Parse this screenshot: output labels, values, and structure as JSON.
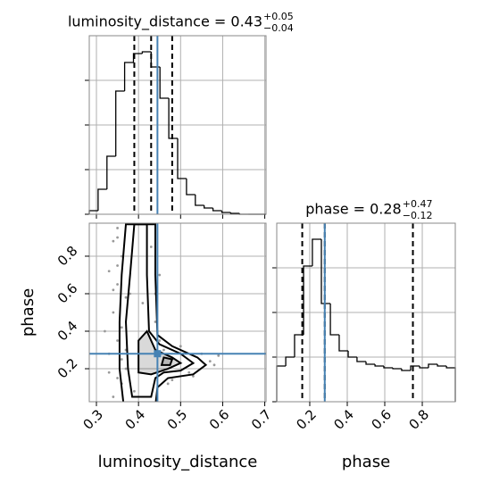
{
  "chart_data": [
    {
      "type": "histogram",
      "title": "luminosity_distance = 0.43",
      "title_sup": "+0.05",
      "title_sub": "−0.04",
      "bins": [
        0.283,
        0.304,
        0.325,
        0.346,
        0.367,
        0.388,
        0.409,
        0.43,
        0.451,
        0.472,
        0.493,
        0.514,
        0.535,
        0.556,
        0.577,
        0.598,
        0.619,
        0.64,
        0.661,
        0.682,
        0.703
      ],
      "values": [
        4,
        28,
        65,
        138,
        170,
        180,
        182,
        165,
        130,
        85,
        40,
        22,
        10,
        7,
        4,
        2,
        1,
        0,
        0,
        0
      ],
      "color": "#000000",
      "quantiles": [
        0.39,
        0.43,
        0.48
      ],
      "truth": 0.445,
      "truth_color": "#4682b4",
      "xlim": [
        0.283,
        0.703
      ],
      "ylim": [
        0,
        200
      ],
      "yticks": [
        0,
        50,
        100,
        150
      ],
      "grid": true
    },
    {
      "type": "histogram",
      "title": "phase = 0.28",
      "title_sup": "+0.47",
      "title_sub": "−0.12",
      "x_label": "phase",
      "bins": [
        0.024,
        0.072,
        0.119,
        0.167,
        0.214,
        0.262,
        0.31,
        0.357,
        0.405,
        0.452,
        0.5,
        0.548,
        0.595,
        0.643,
        0.69,
        0.738,
        0.786,
        0.833,
        0.881,
        0.929,
        0.976
      ],
      "values": [
        40,
        50,
        75,
        152,
        182,
        110,
        75,
        57,
        50,
        45,
        42,
        40,
        38,
        37,
        35,
        40,
        38,
        42,
        40,
        38
      ],
      "color": "#000000",
      "quantiles": [
        0.16,
        0.28,
        0.75
      ],
      "truth": 0.28,
      "truth_color": "#4682b4",
      "xlim": [
        0.024,
        0.976
      ],
      "xticks": [
        0.2,
        0.4,
        0.6,
        0.8
      ],
      "ylim": [
        0,
        200
      ],
      "yticks": [
        0,
        50,
        100,
        150
      ],
      "grid": true
    },
    {
      "type": "scatter",
      "x_label": "luminosity_distance",
      "y_label": "phase",
      "x": [
        0.35,
        0.34,
        0.36,
        0.33,
        0.35,
        0.37,
        0.34,
        0.36,
        0.35,
        0.33,
        0.37,
        0.36,
        0.34,
        0.35,
        0.38,
        0.45,
        0.46,
        0.5,
        0.52,
        0.55,
        0.57,
        0.48,
        0.53,
        0.58,
        0.44,
        0.45,
        0.36,
        0.35,
        0.34,
        0.43,
        0.41,
        0.39,
        0.36,
        0.37,
        0.59,
        0.47,
        0.32,
        0.35,
        0.33,
        0.44
      ],
      "y": [
        0.95,
        0.88,
        0.8,
        0.72,
        0.65,
        0.58,
        0.5,
        0.42,
        0.35,
        0.28,
        0.2,
        0.12,
        0.05,
        0.9,
        0.6,
        0.35,
        0.3,
        0.32,
        0.18,
        0.28,
        0.24,
        0.14,
        0.16,
        0.22,
        0.45,
        0.7,
        0.25,
        0.15,
        0.62,
        0.85,
        0.55,
        0.08,
        0.98,
        0.3,
        0.27,
        0.12,
        0.4,
        0.75,
        0.18,
        0.6
      ],
      "color": "#999999",
      "contours": [
        {
          "x": [
            0.365,
            0.355,
            0.355,
            0.36,
            0.37,
            0.44,
            0.44,
            0.445,
            0.48,
            0.54,
            0.56,
            0.53,
            0.47,
            0.445,
            0.44
          ],
          "y": [
            0.0,
            0.2,
            0.45,
            0.7,
            0.97,
            0.97,
            0.7,
            0.38,
            0.32,
            0.26,
            0.22,
            0.17,
            0.15,
            0.1,
            0.0
          ]
        },
        {
          "x": [
            0.385,
            0.375,
            0.37,
            0.38,
            0.39,
            0.42,
            0.42,
            0.425,
            0.45,
            0.5,
            0.53,
            0.5,
            0.46,
            0.44,
            0.43
          ],
          "y": [
            0.05,
            0.2,
            0.45,
            0.7,
            0.97,
            0.97,
            0.7,
            0.4,
            0.33,
            0.28,
            0.23,
            0.19,
            0.18,
            0.15,
            0.05
          ]
        },
        {
          "x": [
            0.4,
            0.4,
            0.42,
            0.44,
            0.48,
            0.5,
            0.47,
            0.43
          ],
          "y": [
            0.18,
            0.35,
            0.4,
            0.3,
            0.26,
            0.23,
            0.2,
            0.17
          ]
        },
        {
          "x": [
            0.455,
            0.46,
            0.48,
            0.475
          ],
          "y": [
            0.22,
            0.26,
            0.25,
            0.22
          ]
        }
      ],
      "contour_color": "#000000",
      "truth_x": 0.445,
      "truth_y": 0.28,
      "truth_color": "#4682b4",
      "xlim": [
        0.283,
        0.703
      ],
      "xticks": [
        0.3,
        0.4,
        0.5,
        0.6,
        0.7
      ],
      "ylim": [
        0.024,
        0.976
      ],
      "yticks": [
        0.2,
        0.4,
        0.6,
        0.8
      ],
      "grid": true
    }
  ]
}
